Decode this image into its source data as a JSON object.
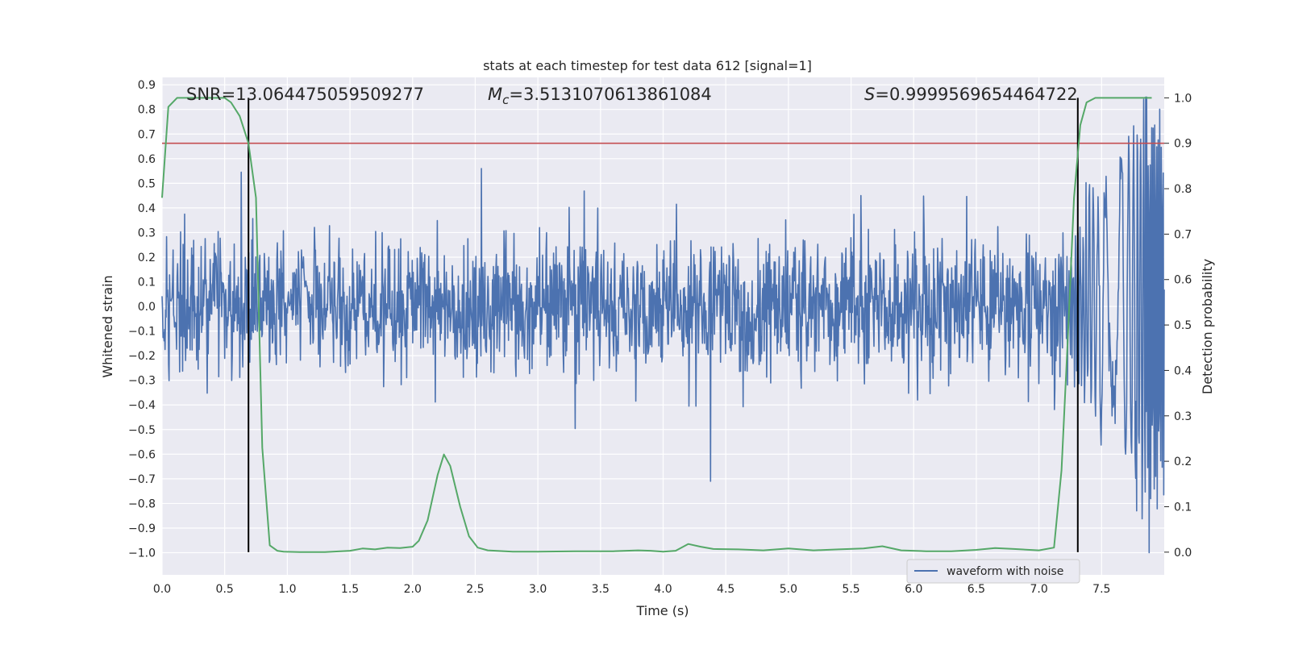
{
  "chart_data": {
    "type": "line",
    "title": "stats at each timestep for test data 612 [signal=1]",
    "xlabel": "Time (s)",
    "ylabel_left": "Whitened strain",
    "ylabel_right": "Detection probability",
    "xlim": [
      0.0,
      8.0
    ],
    "ylim_left": [
      -1.09,
      0.93
    ],
    "ylim_right": [
      -0.05,
      1.045
    ],
    "xticks": [
      "0.0",
      "0.5",
      "1.0",
      "1.5",
      "2.0",
      "2.5",
      "3.0",
      "3.5",
      "4.0",
      "4.5",
      "5.0",
      "5.5",
      "6.0",
      "6.5",
      "7.0",
      "7.5"
    ],
    "yticks_left": [
      "-1.0",
      "-0.9",
      "-0.8",
      "-0.7",
      "-0.6",
      "-0.5",
      "-0.4",
      "-0.3",
      "-0.2",
      "-0.1",
      "0.0",
      "0.1",
      "0.2",
      "0.3",
      "0.4",
      "0.5",
      "0.6",
      "0.7",
      "0.8",
      "0.9"
    ],
    "yticks_right": [
      "0.0",
      "0.1",
      "0.2",
      "0.3",
      "0.4",
      "0.5",
      "0.6",
      "0.7",
      "0.8",
      "0.9",
      "1.0"
    ],
    "grid": true,
    "legend": {
      "placement": "bottom-right",
      "entries": [
        "waveform with noise"
      ]
    },
    "annotations": {
      "snr": "SNR=13.064475059509277",
      "mc_symbol": "M",
      "mc_sub": "c",
      "mc_value": "=3.5131070613861084",
      "s_symbol": "S",
      "s_value": "=0.9999569654464722"
    },
    "threshold": 0.9,
    "vertical_markers": [
      0.69,
      7.31
    ],
    "waveform": {
      "name": "waveform with noise",
      "duration": 8.0,
      "noise_envelope": [
        -0.32,
        0.34
      ],
      "max": 0.85,
      "min": -1.0,
      "notable_peaks": [
        {
          "t": 2.55,
          "v": 0.56
        },
        {
          "t": 4.38,
          "v": -0.71
        },
        {
          "t": 7.85,
          "v": 0.85
        },
        {
          "t": 7.88,
          "v": -1.0
        },
        {
          "t": 7.78,
          "v": -0.83
        }
      ]
    },
    "probability": {
      "x": [
        0.0,
        0.05,
        0.12,
        0.2,
        0.3,
        0.4,
        0.5,
        0.55,
        0.62,
        0.69,
        0.75,
        0.8,
        0.86,
        0.92,
        0.97,
        1.1,
        1.3,
        1.5,
        1.6,
        1.7,
        1.8,
        1.9,
        2.0,
        2.05,
        2.12,
        2.2,
        2.25,
        2.3,
        2.38,
        2.45,
        2.52,
        2.6,
        2.8,
        3.0,
        3.3,
        3.6,
        3.8,
        3.9,
        4.0,
        4.1,
        4.2,
        4.3,
        4.4,
        4.6,
        4.8,
        5.0,
        5.2,
        5.4,
        5.6,
        5.75,
        5.9,
        6.1,
        6.3,
        6.5,
        6.65,
        6.8,
        7.0,
        7.12,
        7.18,
        7.23,
        7.28,
        7.33,
        7.38,
        7.45,
        7.55,
        7.7,
        7.9
      ],
      "y": [
        0.78,
        0.98,
        1.0,
        1.0,
        1.0,
        1.0,
        1.0,
        0.99,
        0.96,
        0.9,
        0.78,
        0.23,
        0.015,
        0.003,
        0.001,
        0.0,
        0.0,
        0.003,
        0.008,
        0.006,
        0.01,
        0.009,
        0.012,
        0.025,
        0.07,
        0.17,
        0.215,
        0.19,
        0.1,
        0.035,
        0.01,
        0.004,
        0.001,
        0.001,
        0.002,
        0.002,
        0.004,
        0.003,
        0.001,
        0.003,
        0.018,
        0.012,
        0.007,
        0.006,
        0.004,
        0.008,
        0.004,
        0.006,
        0.008,
        0.013,
        0.004,
        0.002,
        0.002,
        0.005,
        0.009,
        0.007,
        0.004,
        0.01,
        0.18,
        0.47,
        0.78,
        0.94,
        0.99,
        1.0,
        1.0,
        1.0,
        1.0
      ]
    },
    "colors": {
      "waveform": "#4c72b0",
      "probability": "#55a868",
      "threshold": "#c44e52",
      "markers": "#000000",
      "axes_bg": "#eaeaf2",
      "grid": "#ffffff"
    }
  }
}
